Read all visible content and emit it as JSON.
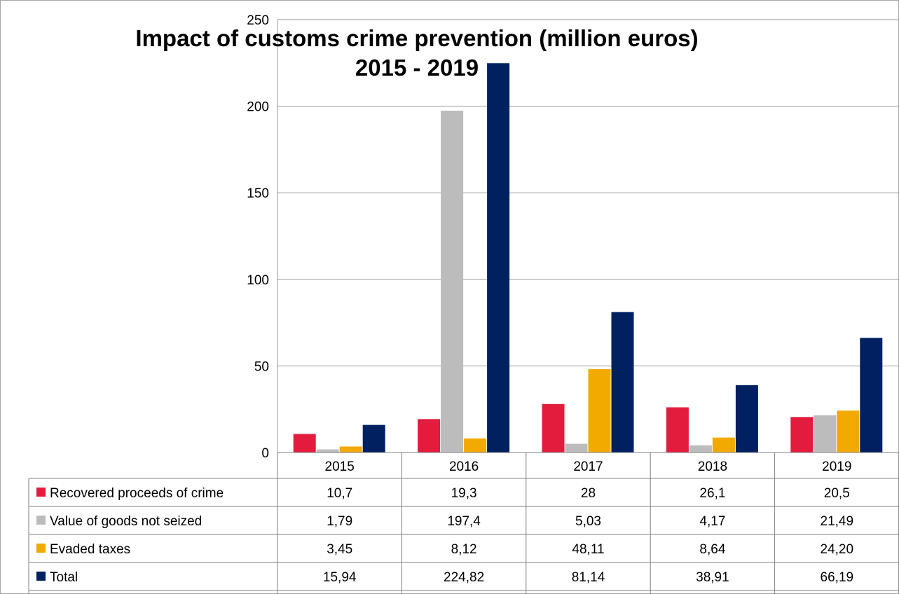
{
  "chart_data": {
    "type": "bar",
    "title": "Impact of customs crime prevention (million euros)",
    "subtitle": "2015 - 2019",
    "categories": [
      "2015",
      "2016",
      "2017",
      "2018",
      "2019"
    ],
    "ylim": [
      0,
      250
    ],
    "yticks": [
      "0",
      "50",
      "100",
      "150",
      "200",
      "250"
    ],
    "ytick_values": [
      0,
      50,
      100,
      150,
      200,
      250
    ],
    "grid": true,
    "legend": "data-table-below",
    "series": [
      {
        "name": "Recovered proceeds of crime",
        "color": "#e31c3d",
        "values": [
          10.7,
          19.3,
          28,
          26.1,
          20.5
        ],
        "labels": [
          "10,7",
          "19,3",
          "28",
          "26,1",
          "20,5"
        ]
      },
      {
        "name": "Value of goods not seized",
        "color": "#bcbcbc",
        "values": [
          1.79,
          197.4,
          5.03,
          4.17,
          21.49
        ],
        "labels": [
          "1,79",
          "197,4",
          "5,03",
          "4,17",
          "21,49"
        ]
      },
      {
        "name": "Evaded taxes",
        "color": "#f2a900",
        "values": [
          3.45,
          8.12,
          48.11,
          8.64,
          24.2
        ],
        "labels": [
          "3,45",
          "8,12",
          "48,11",
          "8,64",
          "24,20"
        ]
      },
      {
        "name": "Total",
        "color": "#002060",
        "values": [
          15.94,
          224.82,
          81.14,
          38.91,
          66.19
        ],
        "labels": [
          "15,94",
          "224,82",
          "81,14",
          "38,91",
          "66,19"
        ]
      }
    ]
  }
}
